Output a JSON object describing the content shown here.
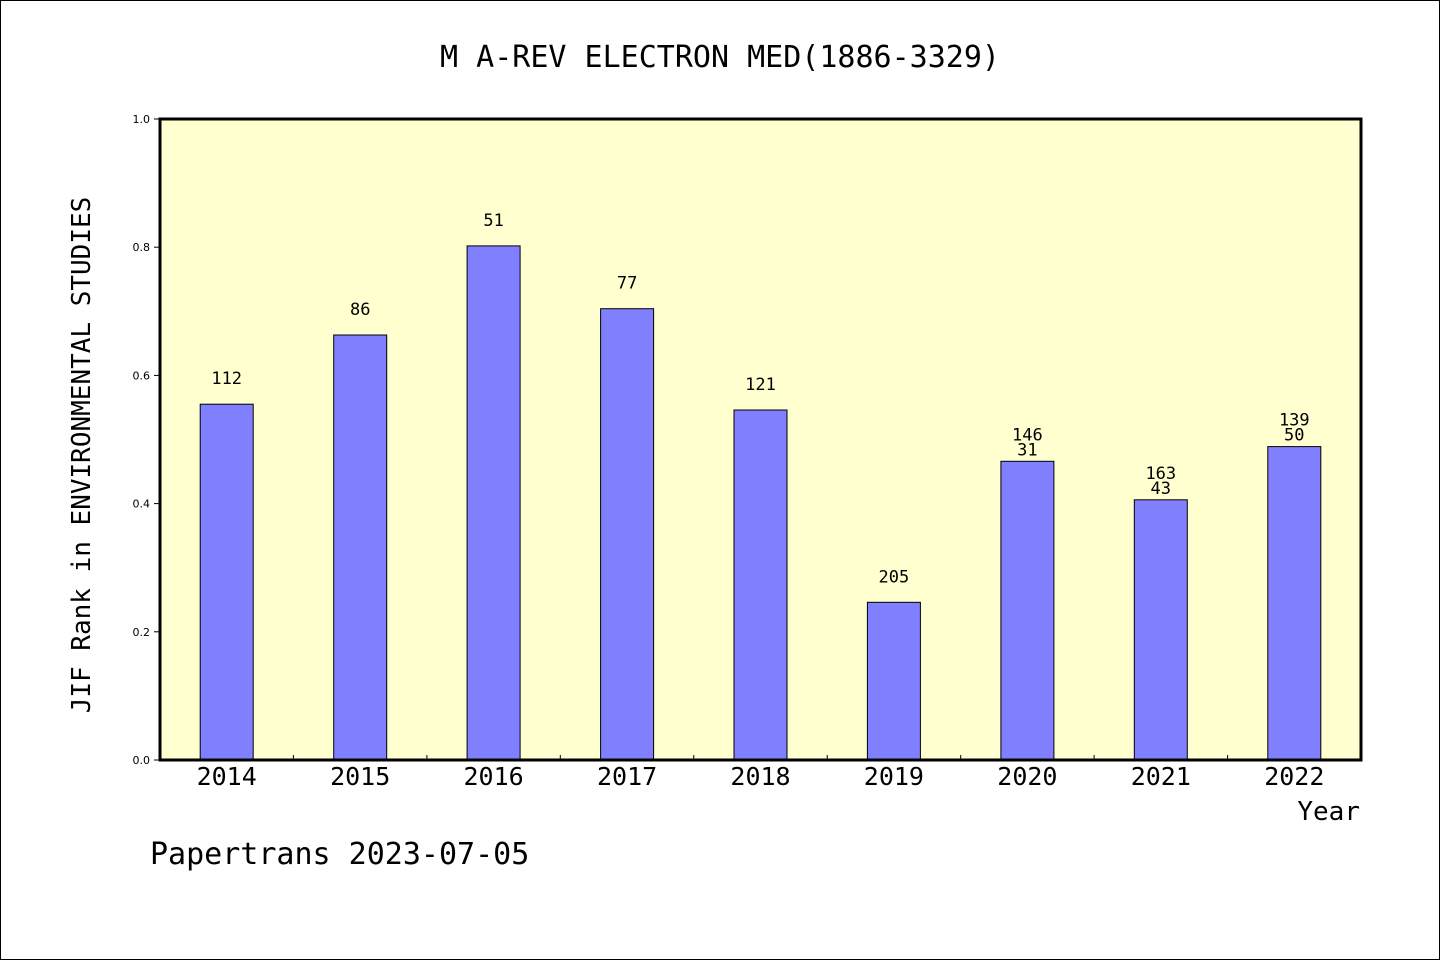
{
  "chart_data": {
    "type": "bar",
    "title": "M A-REV ELECTRON MED(1886-3329)",
    "xlabel": "Year",
    "ylabel": "JIF Rank in ENVIRONMENTAL STUDIES",
    "ylim": [
      0.0,
      1.0
    ],
    "yticks": [
      "0.0",
      "0.2",
      "0.4",
      "0.6",
      "0.8",
      "1.0"
    ],
    "categories": [
      "2014",
      "2015",
      "2016",
      "2017",
      "2018",
      "2019",
      "2020",
      "2021",
      "2022"
    ],
    "values": [
      0.555,
      0.663,
      0.802,
      0.704,
      0.546,
      0.246,
      0.466,
      0.406,
      0.489
    ],
    "bar_labels": [
      [
        "112"
      ],
      [
        "86"
      ],
      [
        "51"
      ],
      [
        "77"
      ],
      [
        "121"
      ],
      [
        "205"
      ],
      [
        "146",
        "31"
      ],
      [
        "163",
        "43"
      ],
      [
        "139",
        "50"
      ]
    ],
    "grid": false,
    "colors": {
      "bar": "#8080ff",
      "plot_background": "#ffffd0",
      "axes": "#000000"
    }
  },
  "footer": {
    "text": "Papertrans 2023-07-05"
  }
}
